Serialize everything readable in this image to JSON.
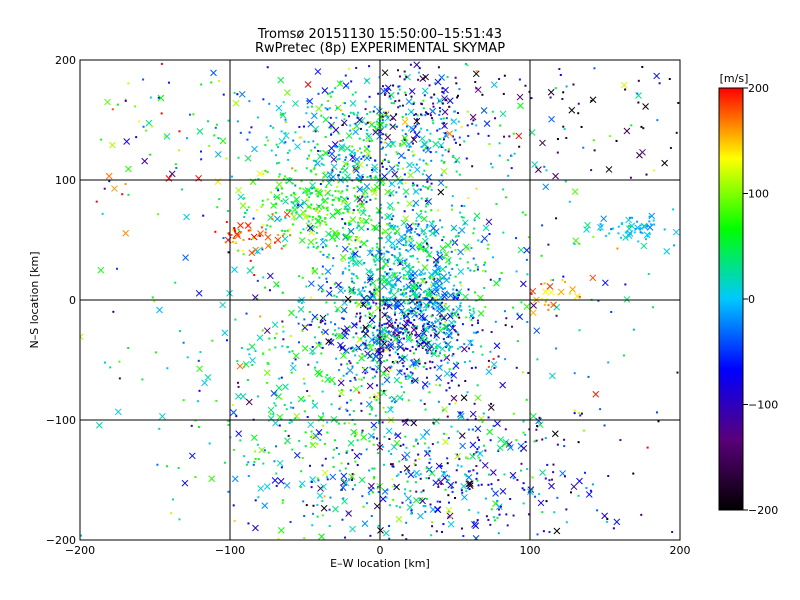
{
  "chart_data": {
    "type": "scatter",
    "title": "Tromsø 20151130 15:50:00–15:51:43",
    "subtitle": "RwPretec (8p) EXPERIMENTAL SKYMAP",
    "xlabel": "E–W location [km]",
    "ylabel": "N–S location [km]",
    "xlim": [
      -200,
      200
    ],
    "ylim": [
      -200,
      200
    ],
    "x_ticks": [
      -200,
      -100,
      0,
      100,
      200
    ],
    "y_ticks": [
      -200,
      -100,
      0,
      100,
      200
    ],
    "x_tick_labels": [
      "−200",
      "−100",
      "0",
      "100",
      "200"
    ],
    "y_tick_labels": [
      "−200",
      "−100",
      "0",
      "100",
      "200"
    ],
    "grid": true,
    "colorbar": {
      "label": "[m/s]",
      "range": [
        -200,
        200
      ],
      "ticks": [
        200,
        100,
        0,
        -100,
        -200
      ],
      "tick_labels": [
        "200",
        "100",
        "0",
        "−100",
        "−200"
      ],
      "colormap": [
        "#000000",
        "#5a007a",
        "#0000ff",
        "#00c8ff",
        "#00ff00",
        "#ffff00",
        "#ff0000"
      ]
    },
    "markers": [
      "cross",
      "dot"
    ],
    "clusters": [
      {
        "cx": 0,
        "cy": 130,
        "sx": 40,
        "sy": 30,
        "n": 520,
        "v": 0,
        "vs": 60
      },
      {
        "cx": 20,
        "cy": 20,
        "sx": 25,
        "sy": 30,
        "n": 650,
        "v": 10,
        "vs": 40
      },
      {
        "cx": 15,
        "cy": -30,
        "sx": 30,
        "sy": 20,
        "n": 380,
        "v": -80,
        "vs": 60
      },
      {
        "cx": 50,
        "cy": -150,
        "sx": 55,
        "sy": 35,
        "n": 420,
        "v": -60,
        "vs": 70
      },
      {
        "cx": -20,
        "cy": -80,
        "sx": 45,
        "sy": 55,
        "n": 420,
        "v": 50,
        "vs": 40
      },
      {
        "cx": -40,
        "cy": 75,
        "sx": 25,
        "sy": 20,
        "n": 280,
        "v": 70,
        "vs": 30
      },
      {
        "cx": -85,
        "cy": 55,
        "sx": 12,
        "sy": 8,
        "n": 45,
        "v": 180,
        "vs": 20
      },
      {
        "cx": 170,
        "cy": 60,
        "sx": 15,
        "sy": 6,
        "n": 60,
        "v": 0,
        "vs": 15
      },
      {
        "cx": 150,
        "cy": 150,
        "sx": 45,
        "sy": 30,
        "n": 60,
        "v": -160,
        "vs": 40
      },
      {
        "cx": 0,
        "cy": 0,
        "sx": 110,
        "sy": 110,
        "n": 520,
        "v": 0,
        "vs": 80
      },
      {
        "cx": -160,
        "cy": 140,
        "sx": 30,
        "sy": 40,
        "n": 60,
        "v": 80,
        "vs": 90
      },
      {
        "cx": 120,
        "cy": 5,
        "sx": 12,
        "sy": 8,
        "n": 25,
        "v": 170,
        "vs": 25
      },
      {
        "cx": 30,
        "cy": 165,
        "sx": 25,
        "sy": 20,
        "n": 90,
        "v": -130,
        "vs": 40
      }
    ]
  }
}
